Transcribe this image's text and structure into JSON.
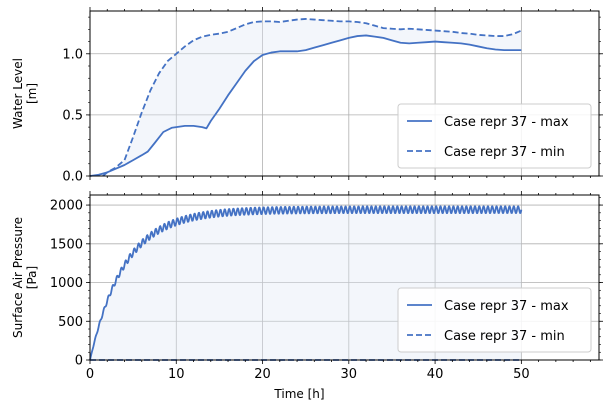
{
  "chart_data": [
    {
      "type": "line",
      "ylabel_lines": [
        "Water Level",
        "[m]"
      ],
      "xlabel": "",
      "xlim": [
        0,
        59
      ],
      "ylim": [
        0,
        1.35
      ],
      "xticks": [
        0,
        10,
        20,
        30,
        40,
        50
      ],
      "yticks": [
        0.0,
        0.5,
        1.0
      ],
      "ytick_labels": [
        "0.0",
        "0.5",
        "1.0"
      ],
      "show_xtick_labels": false,
      "grid": true,
      "legend_position": "lower-right",
      "series": [
        {
          "name": "Case repr 37 - max",
          "style": "solid",
          "x": [
            0,
            1,
            2,
            3,
            4,
            5,
            6,
            6.7,
            7.5,
            8.5,
            9.5,
            10,
            11,
            12,
            13,
            13.5,
            14,
            15,
            16,
            17,
            18,
            19,
            20,
            21,
            22,
            23,
            24,
            25,
            26,
            27,
            28,
            29,
            30,
            31,
            32,
            33,
            34,
            35,
            36,
            37,
            38,
            39,
            40,
            41,
            42,
            43,
            44,
            45,
            46,
            47,
            48,
            49,
            50
          ],
          "y": [
            0,
            0.01,
            0.03,
            0.06,
            0.09,
            0.13,
            0.17,
            0.2,
            0.27,
            0.36,
            0.395,
            0.4,
            0.41,
            0.41,
            0.4,
            0.39,
            0.45,
            0.55,
            0.66,
            0.76,
            0.86,
            0.94,
            0.99,
            1.01,
            1.02,
            1.02,
            1.02,
            1.03,
            1.05,
            1.07,
            1.09,
            1.11,
            1.13,
            1.145,
            1.15,
            1.14,
            1.13,
            1.11,
            1.09,
            1.085,
            1.09,
            1.095,
            1.1,
            1.095,
            1.09,
            1.085,
            1.075,
            1.06,
            1.045,
            1.035,
            1.03,
            1.03,
            1.03
          ]
        },
        {
          "name": "Case repr 37 - min",
          "style": "dashed",
          "x": [
            1.5,
            2,
            3,
            4,
            5,
            6,
            7,
            8,
            9,
            10,
            11,
            12,
            13,
            14,
            15,
            16,
            17,
            18,
            19,
            20,
            21,
            22,
            23,
            24,
            25,
            26,
            27,
            28,
            29,
            30,
            31,
            32,
            33,
            34,
            35,
            36,
            37,
            38,
            39,
            40,
            41,
            42,
            43,
            44,
            45,
            46,
            47,
            48,
            49,
            50
          ],
          "y": [
            0.0,
            0.03,
            0.07,
            0.13,
            0.32,
            0.52,
            0.7,
            0.84,
            0.94,
            1.0,
            1.06,
            1.11,
            1.14,
            1.155,
            1.165,
            1.18,
            1.21,
            1.24,
            1.26,
            1.265,
            1.265,
            1.26,
            1.27,
            1.28,
            1.285,
            1.28,
            1.275,
            1.27,
            1.265,
            1.265,
            1.26,
            1.25,
            1.23,
            1.21,
            1.205,
            1.2,
            1.205,
            1.2,
            1.195,
            1.19,
            1.185,
            1.18,
            1.17,
            1.165,
            1.155,
            1.15,
            1.145,
            1.145,
            1.16,
            1.19
          ]
        }
      ]
    },
    {
      "type": "line",
      "ylabel_lines": [
        "Surface Air Pressure",
        "[Pa]"
      ],
      "xlabel": "Time [h]",
      "xlim": [
        0,
        59
      ],
      "ylim": [
        0,
        2130
      ],
      "xticks": [
        0,
        10,
        20,
        30,
        40,
        50
      ],
      "xtick_labels": [
        "0",
        "10",
        "20",
        "30",
        "40",
        "50"
      ],
      "yticks": [
        0,
        500,
        1000,
        1500,
        2000
      ],
      "ytick_labels": [
        "0",
        "500",
        "1000",
        "1500",
        "2000"
      ],
      "show_xtick_labels": true,
      "grid": true,
      "legend_position": "lower-right",
      "series": [
        {
          "name": "Case repr 37 - max",
          "style": "solid",
          "equilibrium": 1940,
          "time_constant_h": 4.0,
          "oscillation_period_h": 0.5,
          "oscillation_amplitude": 45,
          "x_end": 50
        },
        {
          "name": "Case repr 37 - min",
          "style": "dashed",
          "x": [
            0,
            50
          ],
          "y": [
            0,
            0
          ]
        }
      ]
    }
  ],
  "colors": {
    "line": "#4472c4",
    "fill": "#dde4f3",
    "grid": "#b0b0b0",
    "axis": "#000000",
    "legend_border": "#cccccc"
  }
}
